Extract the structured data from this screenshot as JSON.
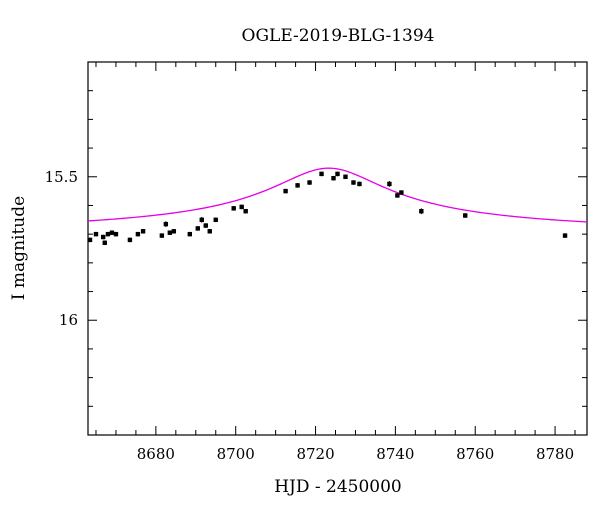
{
  "chart_data": {
    "type": "scatter",
    "title": "OGLE-2019-BLG-1394",
    "xlabel": "HJD - 2450000",
    "ylabel": "I magnitude",
    "xlim": [
      8663,
      8788
    ],
    "ylim": [
      16.4,
      15.1
    ],
    "y_inverted": true,
    "x_ticks": [
      8680,
      8700,
      8720,
      8740,
      8760,
      8780
    ],
    "y_ticks": [
      15.5,
      16
    ],
    "x_tick_labels": [
      "8680",
      "8700",
      "8720",
      "8740",
      "8760",
      "8780"
    ],
    "y_tick_labels": [
      "15.5",
      "16"
    ],
    "grid": false,
    "colors": {
      "points": "#000000",
      "model": "#e600e6"
    },
    "model": {
      "t0": 8723.3,
      "baseline": 15.71,
      "amplitude": 0.24,
      "tau": 14.5
    },
    "series": [
      {
        "kind": "points",
        "x": [
          8663.5,
          8665.0,
          8666.8,
          8667.2,
          8668.0,
          8669.0,
          8670.0,
          8673.5,
          8675.5,
          8676.8,
          8681.5,
          8682.5,
          8683.5,
          8684.5,
          8688.5,
          8690.5,
          8691.5,
          8692.5,
          8693.5,
          8695.0,
          8699.5,
          8701.5,
          8702.5,
          8712.5,
          8715.5,
          8718.5,
          8721.5,
          8724.5,
          8725.5,
          8727.5,
          8729.5,
          8731.0,
          8738.5,
          8740.5,
          8741.5,
          8746.5,
          8757.5,
          8782.5
        ],
        "y": [
          15.72,
          15.7,
          15.71,
          15.73,
          15.7,
          15.695,
          15.7,
          15.72,
          15.7,
          15.69,
          15.705,
          15.665,
          15.695,
          15.69,
          15.7,
          15.68,
          15.65,
          15.67,
          15.69,
          15.65,
          15.61,
          15.605,
          15.62,
          15.55,
          15.53,
          15.52,
          15.49,
          15.505,
          15.49,
          15.5,
          15.52,
          15.525,
          15.525,
          15.565,
          15.555,
          15.62,
          15.635,
          15.705
        ],
        "err": [
          0.008,
          0.008,
          0.008,
          0.008,
          0.008,
          0.008,
          0.008,
          0.008,
          0.008,
          0.008,
          0.008,
          0.01,
          0.008,
          0.008,
          0.008,
          0.008,
          0.01,
          0.008,
          0.008,
          0.008,
          0.008,
          0.008,
          0.008,
          0.008,
          0.008,
          0.008,
          0.008,
          0.008,
          0.008,
          0.008,
          0.008,
          0.008,
          0.01,
          0.008,
          0.008,
          0.01,
          0.008,
          0.008
        ]
      }
    ]
  }
}
